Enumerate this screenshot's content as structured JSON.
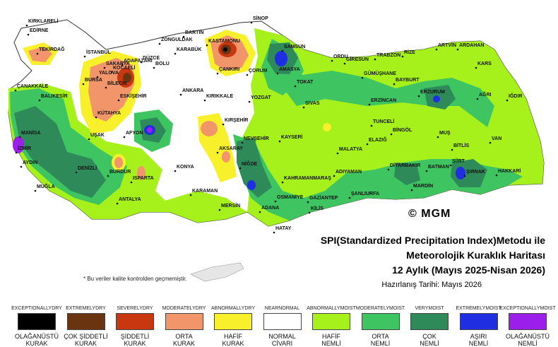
{
  "title": {
    "line1": "SPI(Standardized Precipitation Index)Metodu ile",
    "line2": "Meteorolojik Kuraklık Haritası",
    "line3": "12 Aylık (Mayıs 2025-Nisan 2026)",
    "date": "Hazırlanış Tarihi: Mayıs 2026"
  },
  "note": "* Bu veriler kalite kontrolden geçmemiştir.",
  "copyright": "© MGM",
  "colors": {
    "exceptionally_dry": "#000000",
    "extremely_dry": "#6b3410",
    "severely_dry": "#c8370f",
    "moderately_dry": "#f2956a",
    "abnormally_dry": "#f7f02a",
    "near_normal": "#ffffff",
    "abnormally_moist": "#a6f01c",
    "moderately_moist": "#3fc462",
    "very_moist": "#2f8a5a",
    "extremely_moist": "#1f2ee0",
    "exceptionally_moist": "#9b1fe8"
  },
  "legend": [
    {
      "en1": "EXCEPTIONALLY",
      "en2": "DRY",
      "tr1": "OLAĞANÜSTÜ",
      "tr2": "KURAK",
      "color": "#000000"
    },
    {
      "en1": "EXTREMELY",
      "en2": "DRY",
      "tr1": "ÇOK ŞİDDETLİ",
      "tr2": "KURAK",
      "color": "#6b3410"
    },
    {
      "en1": "SEVERELY",
      "en2": "DRY",
      "tr1": "ŞİDDETLİ",
      "tr2": "KURAK",
      "color": "#c8370f"
    },
    {
      "en1": "MODERATELY",
      "en2": "DRY",
      "tr1": "ORTA",
      "tr2": "KURAK",
      "color": "#f2956a"
    },
    {
      "en1": "ABNORMALLY",
      "en2": "DRY",
      "tr1": "HAFİF",
      "tr2": "KURAK",
      "color": "#f7f02a"
    },
    {
      "en1": "NEAR",
      "en2": "NORMAL",
      "tr1": "NORMAL",
      "tr2": "CİVARI",
      "color": "#ffffff"
    },
    {
      "en1": "ABNORMALLY",
      "en2": "MOIST",
      "tr1": "HAFİF",
      "tr2": "NEMLİ",
      "color": "#a6f01c"
    },
    {
      "en1": "MODERATELY",
      "en2": "MOIST",
      "tr1": "ORTA",
      "tr2": "NEMLİ",
      "color": "#3fc462"
    },
    {
      "en1": "VERY",
      "en2": "MOIST",
      "tr1": "ÇOK",
      "tr2": "NEMLİ",
      "color": "#2f8a5a"
    },
    {
      "en1": "EXTREMELY",
      "en2": "MOIST",
      "tr1": "AŞIRI",
      "tr2": "NEMLİ",
      "color": "#1f2ee0"
    },
    {
      "en1": "EXCEPTIONALLY",
      "en2": "MOIST",
      "tr1": "OLAĞANÜSTÜ",
      "tr2": "NEMLİ",
      "color": "#9b1fe8"
    }
  ],
  "cities": [
    "KIRKLARELİ",
    "EDİRNE",
    "TEKİRDAĞ",
    "İSTANBUL",
    "KOCAELİ",
    "SAKARYA",
    "YALOVA",
    "BURSA",
    "BİLECİK",
    "ADAPAZARI",
    "DÜZCE",
    "BOLU",
    "BARTIN",
    "ZONGULDAK",
    "KARABÜK",
    "KASTAMONU",
    "SİNOP",
    "ÇANKIRI",
    "ÇORUM",
    "AMASYA",
    "SAMSUN",
    "ORDU",
    "GİRESUN",
    "TRABZON",
    "RİZE",
    "ARTVİN",
    "ARDAHAN",
    "KARS",
    "IĞDIR",
    "AĞRI",
    "ERZURUM",
    "BAYBURT",
    "GÜMÜŞHANE",
    "ERZİNCAN",
    "TOKAT",
    "SİVAS",
    "YOZGAT",
    "KIRIKKALE",
    "ANKARA",
    "ESKİŞEHİR",
    "KÜTAHYA",
    "BALIKESİR",
    "ÇANAKKALE",
    "MANİSA",
    "İZMİR",
    "AYDIN",
    "MUĞLA",
    "DENİZLİ",
    "UŞAK",
    "AFYON",
    "BURDUR",
    "ISPARTA",
    "ANTALYA",
    "KONYA",
    "KARAMAN",
    "AKSARAY",
    "KIRŞEHİR",
    "NEVŞEHİR",
    "KAYSERİ",
    "NİĞDE",
    "MERSİN",
    "ADANA",
    "OSMANİYE",
    "KAHRAMANMARAŞ",
    "GAZİANTEP",
    "KİLİS",
    "HATAY",
    "ADIYAMAN",
    "ŞANLIURFA",
    "MALATYA",
    "ELAZIĞ",
    "TUNCELİ",
    "BİNGÖL",
    "MUŞ",
    "BİTLİS",
    "VAN",
    "DİYARBAKIR",
    "BATMAN",
    "SİİRT",
    "ŞIRNAK",
    "HAKKARİ",
    "MARDİN"
  ]
}
